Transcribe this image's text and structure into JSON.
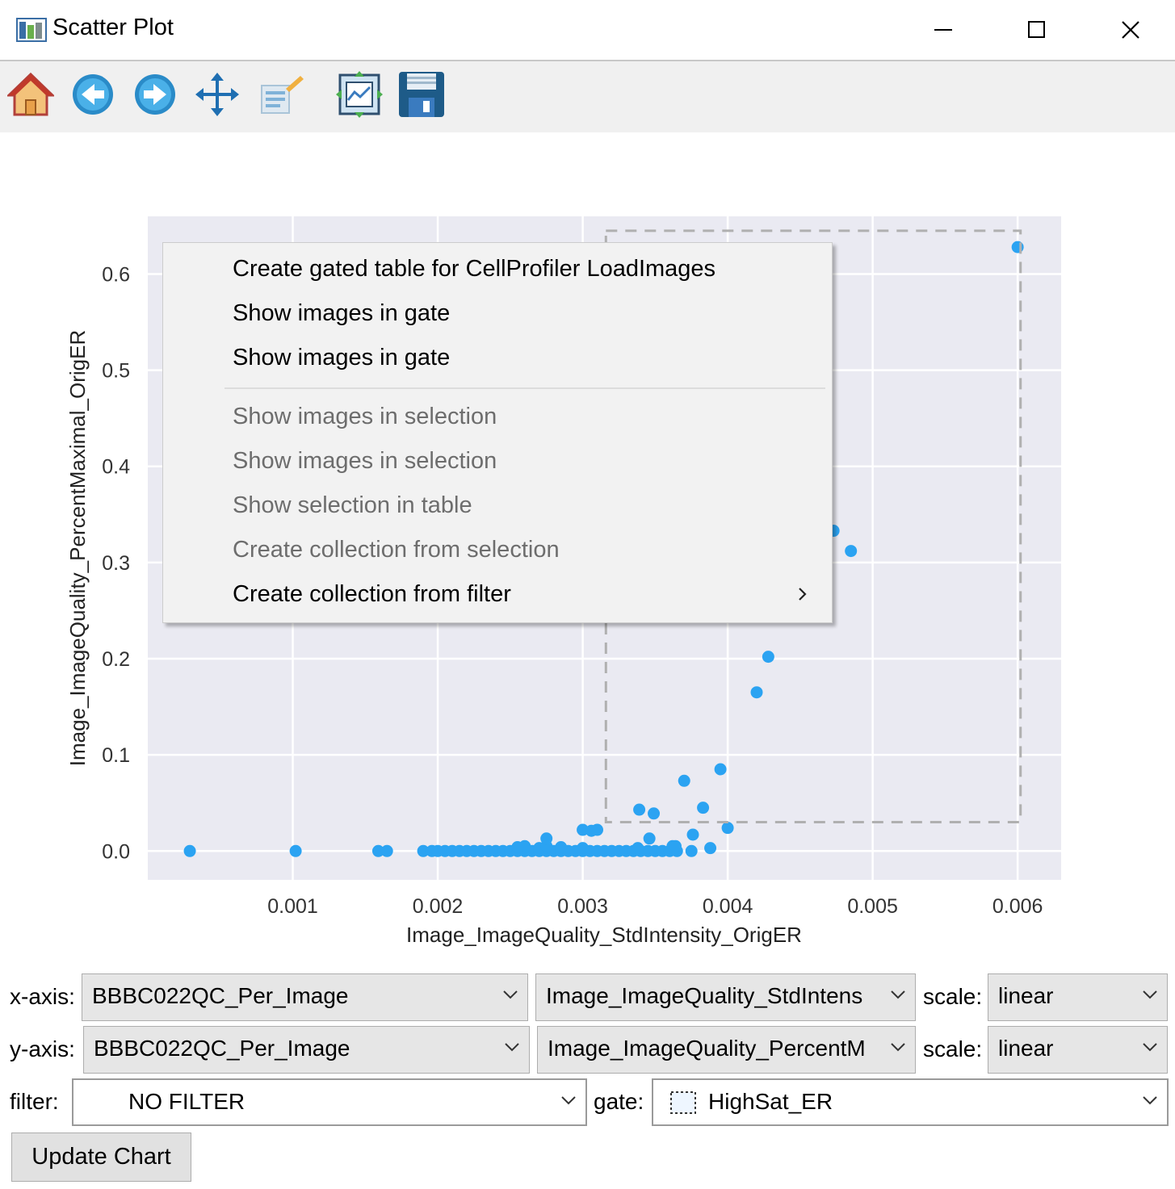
{
  "window": {
    "title": "Scatter Plot",
    "controls": [
      "minimize-icon",
      "maximize-icon",
      "close-icon"
    ]
  },
  "toolbar": {
    "buttons": [
      "home-icon",
      "back-arrow-icon",
      "forward-arrow-icon",
      "pan-icon",
      "configure-subplots-icon",
      "zoom-to-rect-icon",
      "save-icon"
    ]
  },
  "colors": {
    "point": "#2ba3f2",
    "plot_bg": "#eaeaf2",
    "gate": "#b0b0b0",
    "menu_bg": "#f2f2f2"
  },
  "chart_data": {
    "type": "scatter",
    "xlabel": "Image_ImageQuality_StdIntensity_OrigER",
    "ylabel": "Image_ImageQuality_PercentMaximal_OrigER",
    "xlim": [
      0.0,
      0.0063
    ],
    "ylim": [
      -0.03,
      0.66
    ],
    "x_ticks": [
      {
        "value": 0.001,
        "label": "0.001"
      },
      {
        "value": 0.002,
        "label": "0.002"
      },
      {
        "value": 0.003,
        "label": "0.003"
      },
      {
        "value": 0.004,
        "label": "0.004"
      },
      {
        "value": 0.005,
        "label": "0.005"
      },
      {
        "value": 0.006,
        "label": "0.006"
      }
    ],
    "y_ticks": [
      {
        "value": 0.0,
        "label": "0.0"
      },
      {
        "value": 0.1,
        "label": "0.1"
      },
      {
        "value": 0.2,
        "label": "0.2"
      },
      {
        "value": 0.3,
        "label": "0.3"
      },
      {
        "value": 0.4,
        "label": "0.4"
      },
      {
        "value": 0.5,
        "label": "0.5"
      },
      {
        "value": 0.6,
        "label": "0.6"
      }
    ],
    "grid": true,
    "gate": {
      "name": "HighSat_ER",
      "x": [
        0.00316,
        0.00602
      ],
      "y": [
        0.03,
        0.645
      ]
    },
    "points": [
      [
        0.00029,
        0.0
      ],
      [
        0.00102,
        0.0
      ],
      [
        0.00159,
        0.0
      ],
      [
        0.00165,
        0.0
      ],
      [
        0.0019,
        0.0
      ],
      [
        0.00196,
        0.0
      ],
      [
        0.002,
        0.0
      ],
      [
        0.00205,
        0.0
      ],
      [
        0.0021,
        0.0
      ],
      [
        0.00215,
        0.0
      ],
      [
        0.0022,
        0.0
      ],
      [
        0.00225,
        0.0
      ],
      [
        0.0023,
        0.0
      ],
      [
        0.00235,
        0.0
      ],
      [
        0.0024,
        0.0
      ],
      [
        0.00245,
        0.0
      ],
      [
        0.0025,
        0.0
      ],
      [
        0.00255,
        0.0
      ],
      [
        0.0026,
        0.0
      ],
      [
        0.00265,
        0.0
      ],
      [
        0.0027,
        0.0
      ],
      [
        0.00275,
        0.0
      ],
      [
        0.0028,
        0.0
      ],
      [
        0.00285,
        0.0
      ],
      [
        0.0029,
        0.0
      ],
      [
        0.00295,
        0.0
      ],
      [
        0.003,
        0.0
      ],
      [
        0.00305,
        0.0
      ],
      [
        0.0031,
        0.0
      ],
      [
        0.00315,
        0.0
      ],
      [
        0.0032,
        0.0
      ],
      [
        0.00325,
        0.0
      ],
      [
        0.0033,
        0.0
      ],
      [
        0.00335,
        0.0
      ],
      [
        0.0034,
        0.0
      ],
      [
        0.00345,
        0.0
      ],
      [
        0.0035,
        0.0
      ],
      [
        0.00355,
        0.0
      ],
      [
        0.0036,
        0.0
      ],
      [
        0.00365,
        0.0
      ],
      [
        0.0027,
        0.003
      ],
      [
        0.00275,
        0.005
      ],
      [
        0.00285,
        0.004
      ],
      [
        0.003,
        0.003
      ],
      [
        0.0026,
        0.005
      ],
      [
        0.00255,
        0.004
      ],
      [
        0.00338,
        0.003
      ],
      [
        0.00362,
        0.005
      ],
      [
        0.00275,
        0.013
      ],
      [
        0.003,
        0.022
      ],
      [
        0.00306,
        0.021
      ],
      [
        0.0031,
        0.022
      ],
      [
        0.00346,
        0.013
      ],
      [
        0.00364,
        0.005
      ],
      [
        0.00375,
        0.0
      ],
      [
        0.00376,
        0.017
      ],
      [
        0.00388,
        0.003
      ],
      [
        0.004,
        0.024
      ],
      [
        0.00339,
        0.043
      ],
      [
        0.00349,
        0.039
      ],
      [
        0.00383,
        0.045
      ],
      [
        0.0037,
        0.073
      ],
      [
        0.00395,
        0.085
      ],
      [
        0.0042,
        0.165
      ],
      [
        0.00428,
        0.202
      ],
      [
        0.00473,
        0.333
      ],
      [
        0.00485,
        0.312
      ],
      [
        0.006,
        0.628
      ]
    ]
  },
  "context_menu": {
    "items": [
      {
        "label": "Create gated table for CellProfiler LoadImages",
        "enabled": true
      },
      {
        "label": "Show images in gate",
        "enabled": true
      },
      {
        "label": "Show images in gate",
        "enabled": true
      },
      {
        "label": "Show images in selection",
        "enabled": false
      },
      {
        "label": "Show images in selection",
        "enabled": false
      },
      {
        "label": "Show selection in table",
        "enabled": false
      },
      {
        "label": "Create collection from selection",
        "enabled": false
      },
      {
        "label": "Create collection from filter",
        "enabled": true,
        "submenu": true
      }
    ]
  },
  "controls": {
    "x_axis": {
      "label": "x-axis:",
      "table": "BBBC022QC_Per_Image",
      "column": "Image_ImageQuality_StdIntens",
      "scale_label": "scale:",
      "scale": "linear"
    },
    "y_axis": {
      "label": "y-axis:",
      "table": "BBBC022QC_Per_Image",
      "column": "Image_ImageQuality_PercentM",
      "scale_label": "scale:",
      "scale": "linear"
    },
    "filter": {
      "label": "filter:",
      "value": "NO FILTER"
    },
    "gate": {
      "label": "gate:",
      "value": "HighSat_ER"
    },
    "update_button": "Update Chart"
  }
}
